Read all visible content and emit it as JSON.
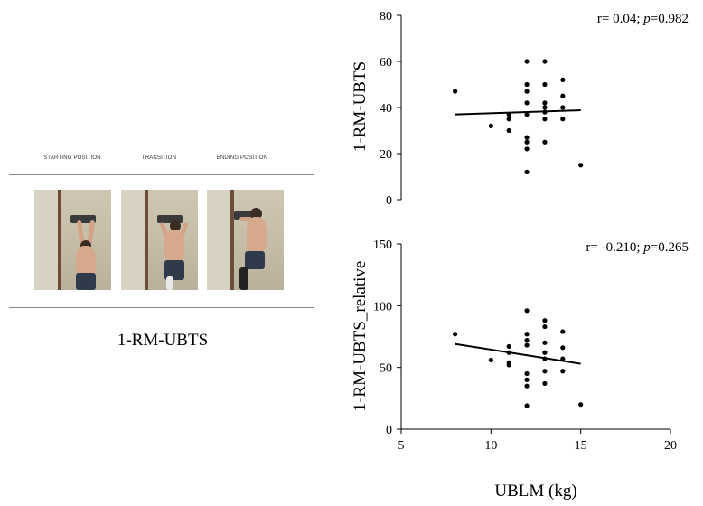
{
  "left_panel": {
    "phases": [
      "STARTING POSITION",
      "TRANSITION",
      "ENDING POSITION"
    ],
    "caption": "1-RM-UBTS"
  },
  "chart_data": [
    {
      "type": "scatter",
      "ylabel": "1-RM-UBTS",
      "xlabel": "",
      "xlim": [
        5,
        20
      ],
      "ylim": [
        0,
        80
      ],
      "yticks": [
        0,
        20,
        40,
        60,
        80
      ],
      "annotation": {
        "pre": "r= 0.04; ",
        "p_symbol": "p",
        "post": "=0.982"
      },
      "points": {
        "x": [
          8,
          10,
          11,
          11,
          11,
          12,
          12,
          12,
          12,
          12,
          12,
          12,
          12,
          12,
          13,
          13,
          13,
          13,
          13,
          13,
          13,
          14,
          14,
          14,
          14,
          15
        ],
        "y": [
          47,
          32,
          30,
          35,
          37,
          60,
          50,
          47,
          42,
          27,
          25,
          22,
          12,
          37,
          60,
          50,
          42,
          40,
          38,
          35,
          25,
          52,
          45,
          40,
          35,
          15
        ]
      },
      "fit": {
        "x": [
          8,
          15
        ],
        "y": [
          37,
          38.8
        ]
      }
    },
    {
      "type": "scatter",
      "ylabel": "1-RM-UBTS_relative",
      "xlabel": "UBLM (kg)",
      "xlim": [
        5,
        20
      ],
      "ylim": [
        0,
        150
      ],
      "yticks": [
        0,
        50,
        100,
        150
      ],
      "xticks": [
        5,
        10,
        15,
        20
      ],
      "annotation": {
        "pre": "r= -0.210; ",
        "p_symbol": "p",
        "post": "=0.265"
      },
      "points": {
        "x": [
          8,
          10,
          11,
          11,
          11,
          11,
          12,
          12,
          12,
          12,
          12,
          12,
          12,
          12,
          13,
          13,
          13,
          13,
          13,
          13,
          13,
          14,
          14,
          14,
          14,
          15
        ],
        "y": [
          77,
          56,
          67,
          62,
          54,
          52,
          96,
          77,
          72,
          68,
          45,
          40,
          35,
          19,
          88,
          83,
          70,
          62,
          57,
          47,
          37,
          79,
          66,
          57,
          47,
          20
        ]
      },
      "fit": {
        "x": [
          8,
          15
        ],
        "y": [
          69,
          53
        ]
      }
    }
  ]
}
